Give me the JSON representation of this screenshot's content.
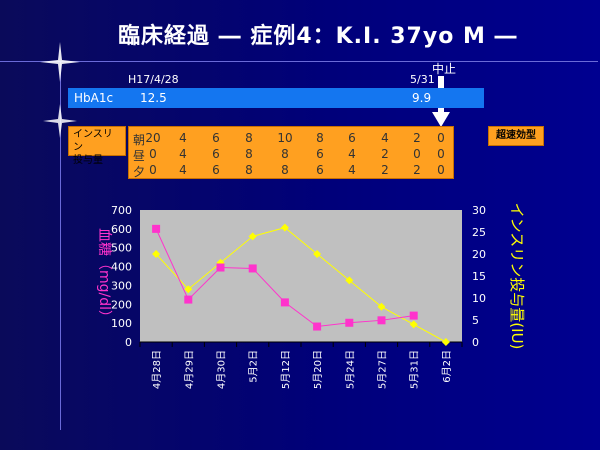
{
  "slide": {
    "title": "臨床経過 ― 症例4：K.I. 37yo M ―",
    "colors": {
      "background": "#000080",
      "hba1c_bar": "#1476f0",
      "table_fill": "#ffa020",
      "plot_bg": "#c0c0c0",
      "glucose": "#ff33cc",
      "insulin": "#ffff00"
    }
  },
  "timeline": {
    "start_date": "H17/4/28",
    "end_date": "5/31",
    "stop_label": "中止",
    "hba1c_label": "HbA1c",
    "hba1c_start": "12.5",
    "hba1c_end": "9.9"
  },
  "insulin_table": {
    "label_line1": "インスリン",
    "label_line2": "投与量",
    "type_badge": "超速効型",
    "rows": [
      {
        "label": "朝",
        "values": [
          "20",
          "4",
          "6",
          "8",
          "10",
          "8",
          "6",
          "4",
          "2",
          "0"
        ]
      },
      {
        "label": "昼",
        "values": [
          "0",
          "4",
          "6",
          "8",
          "8",
          "6",
          "4",
          "2",
          "0",
          "0"
        ]
      },
      {
        "label": "夕",
        "values": [
          "0",
          "4",
          "6",
          "8",
          "8",
          "6",
          "4",
          "2",
          "2",
          "0"
        ]
      }
    ]
  },
  "chart_data": {
    "type": "line",
    "categories": [
      "4月28日",
      "4月29日",
      "4月30日",
      "5月2日",
      "5月12日",
      "5月20日",
      "5月24日",
      "5月27日",
      "5月31日",
      "6月2日"
    ],
    "series": [
      {
        "name": "血糖",
        "axis": "left",
        "color": "#ff33cc",
        "marker": "square",
        "values": [
          600,
          225,
          395,
          390,
          210,
          82,
          102,
          115,
          140,
          null
        ]
      },
      {
        "name": "インスリン投与量",
        "axis": "right",
        "color": "#ffff00",
        "marker": "diamond",
        "values": [
          20,
          12,
          18,
          24,
          26,
          20,
          14,
          8,
          4,
          0
        ]
      }
    ],
    "ylabel_left": "血糖（mg/dl）",
    "ylabel_right": "インスリン投与量(IU)",
    "ylim_left": [
      0,
      700
    ],
    "yticks_left": [
      0,
      100,
      200,
      300,
      400,
      500,
      600,
      700
    ],
    "ylim_right": [
      0,
      30
    ],
    "yticks_right": [
      0,
      5,
      10,
      15,
      20,
      25,
      30
    ],
    "grid": false,
    "legend": "none"
  }
}
